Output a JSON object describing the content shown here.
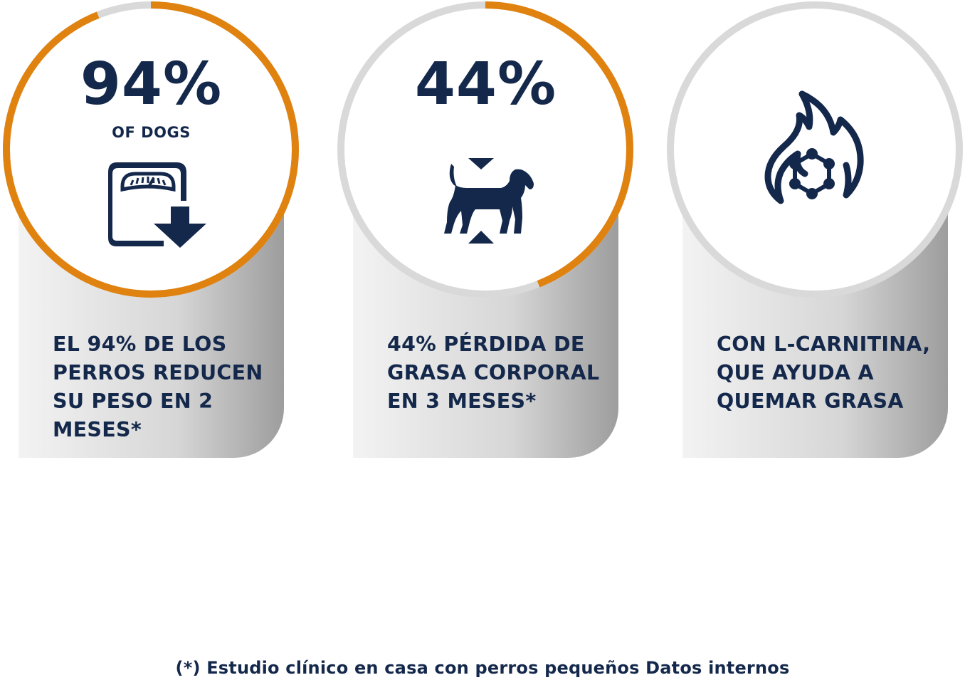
{
  "colors": {
    "navy": "#14284b",
    "orange": "#e0820f",
    "ring_gray": "#d9d9d9"
  },
  "cards": [
    {
      "stat": "94%",
      "sub": "OF DOGS",
      "icon": "scale-weight-down-icon",
      "progress_percent": 94,
      "caption_lines": [
        "EL 94% DE LOS",
        "PERROS REDUCEN",
        "SU PESO EN 2",
        "MESES*"
      ]
    },
    {
      "stat": "44%",
      "icon": "dog-shrinking-icon",
      "progress_percent": 44,
      "caption_lines": [
        "44% PÉRDIDA DE",
        "GRASA CORPORAL",
        "EN 3 MESES*"
      ]
    },
    {
      "icon": "flame-molecule-icon",
      "progress_percent": 0,
      "caption_lines": [
        "CON L-CARNITINA,",
        "QUE AYUDA A",
        "QUEMAR GRASA"
      ]
    }
  ],
  "footnote": "(*) Estudio clínico en casa con perros pequeños Datos internos"
}
